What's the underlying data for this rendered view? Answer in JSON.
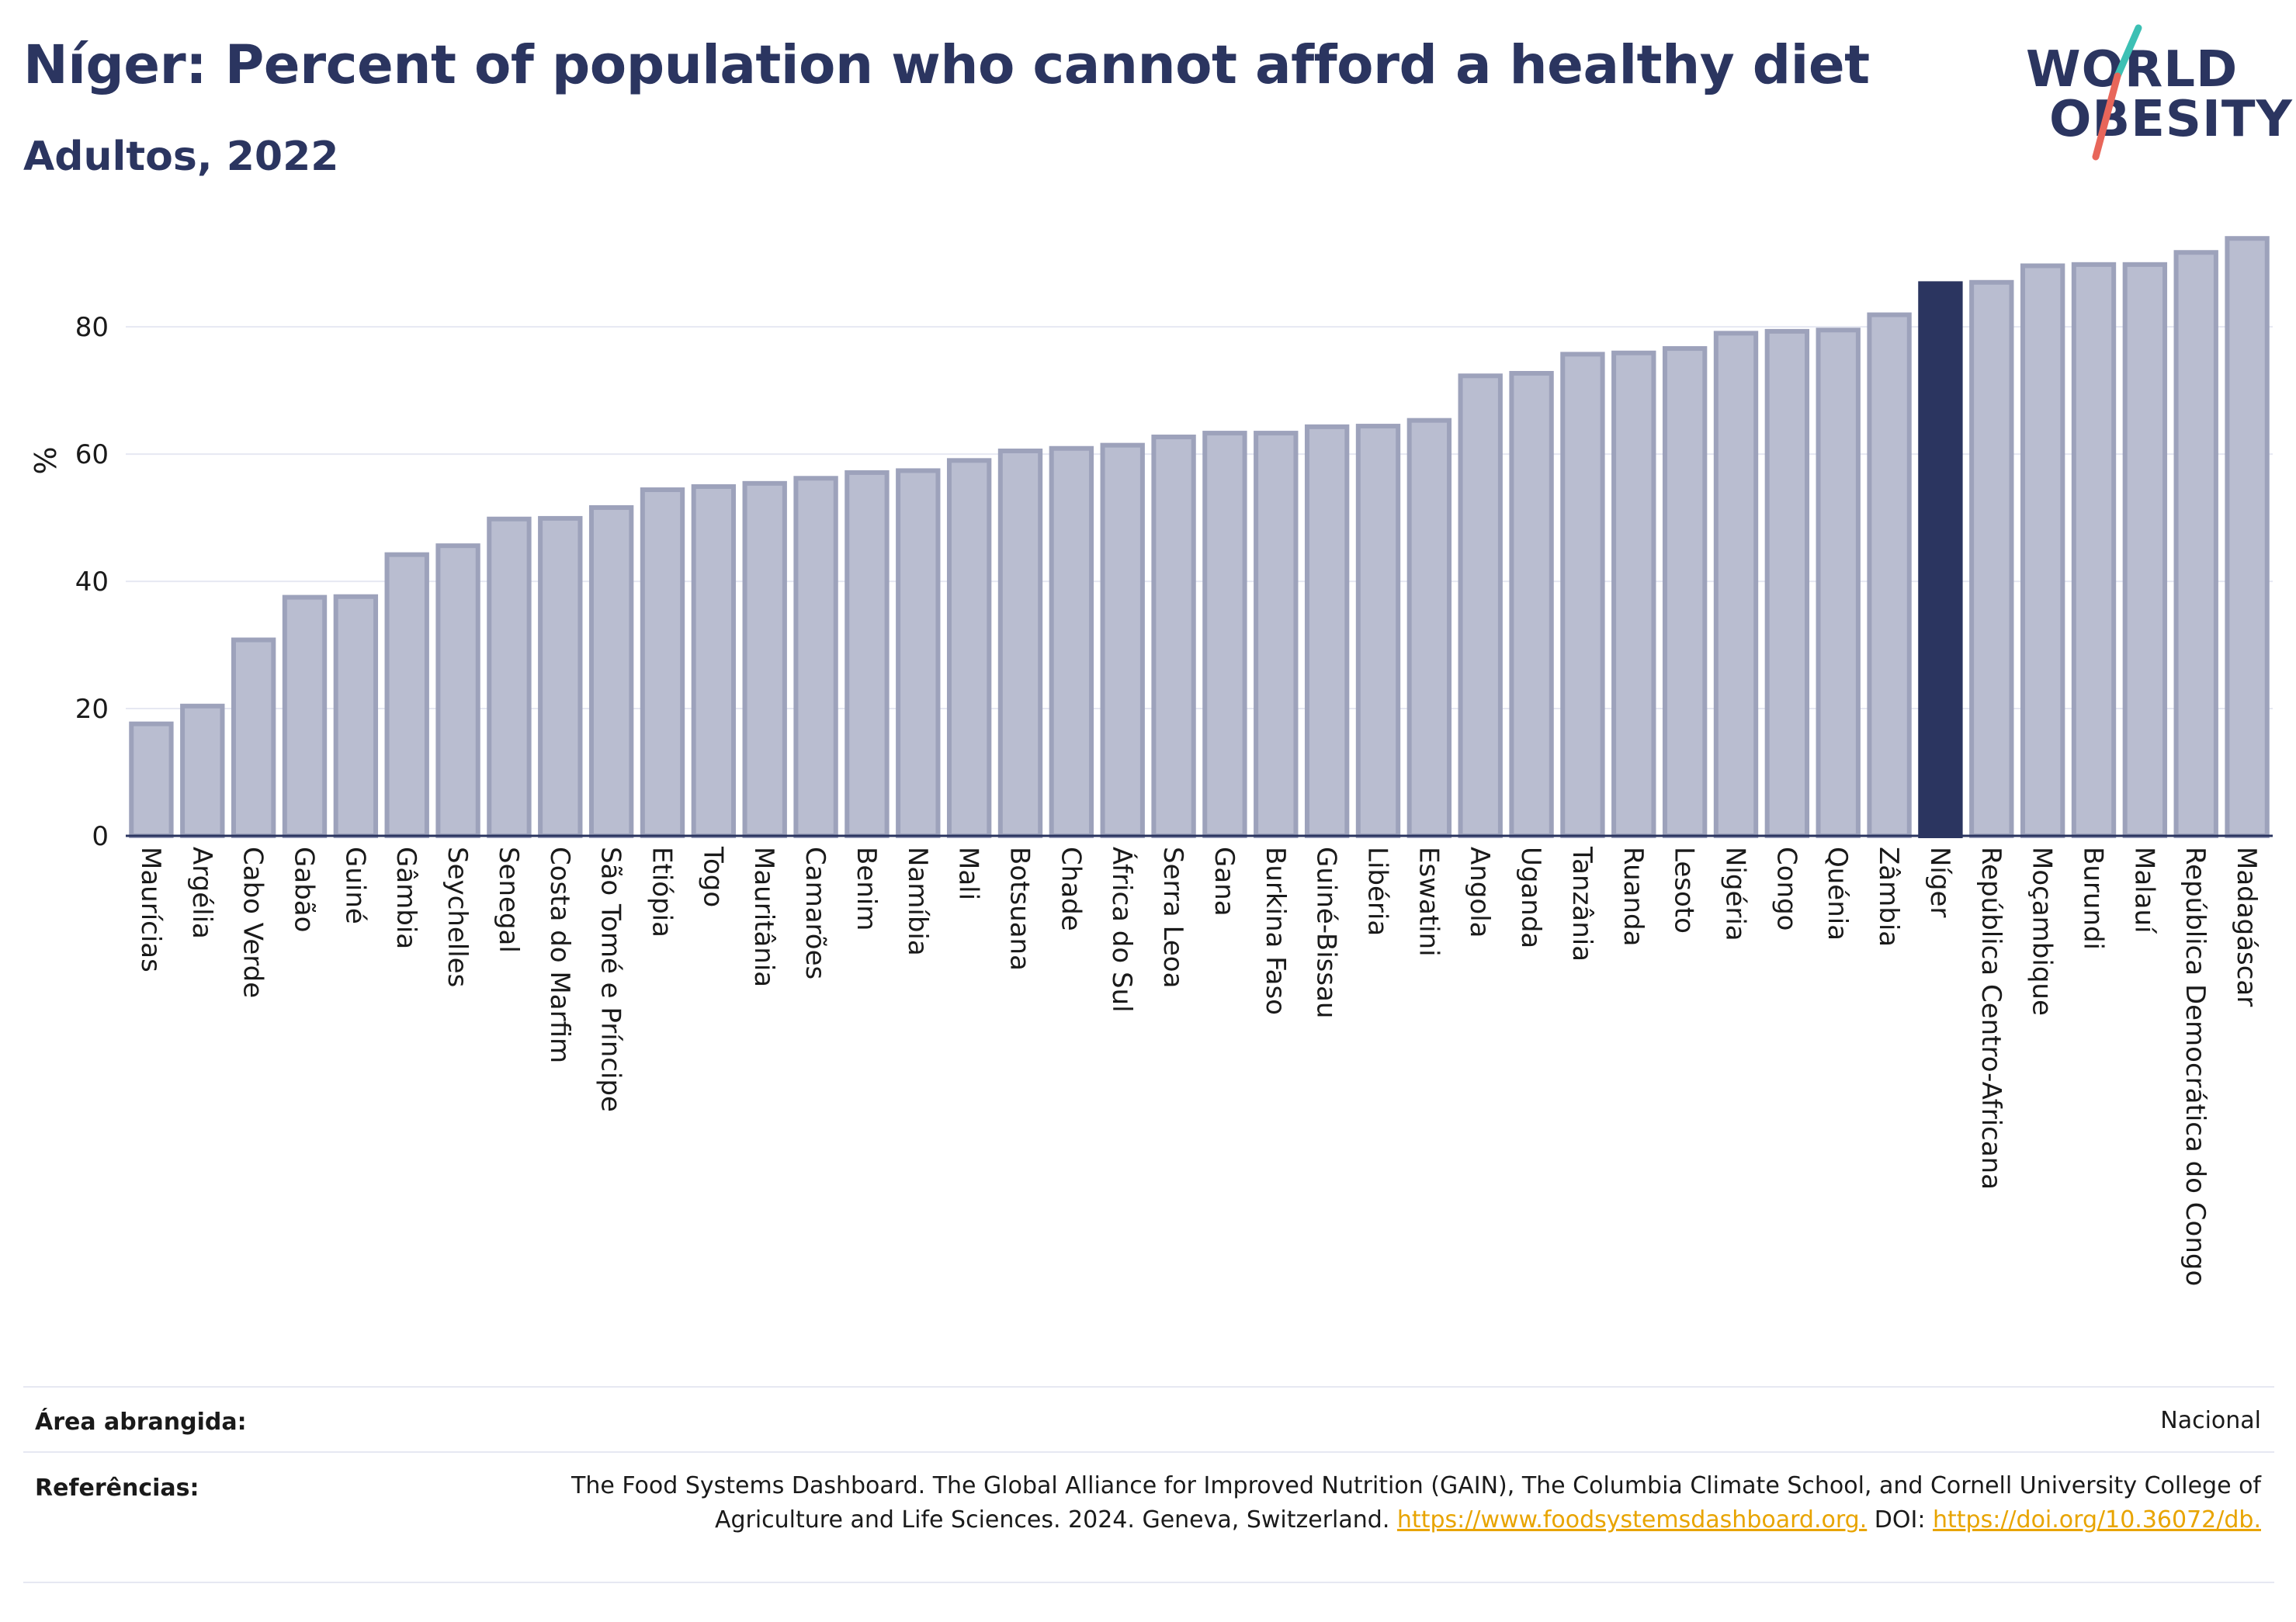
{
  "header": {
    "title": "Níger: Percent of population who cannot afford a healthy diet",
    "subtitle": "Adultos, 2022"
  },
  "logo": {
    "line1": "WORLD",
    "line2": "OBESITY",
    "colors": {
      "text": "#2b3560",
      "slash_top": "#3cc0b4",
      "slash_bottom": "#e8665a"
    }
  },
  "chart_data": {
    "type": "bar",
    "title": "",
    "xlabel": "",
    "ylabel": "%",
    "ylim": [
      0,
      96
    ],
    "yticks": [
      0,
      20,
      40,
      60,
      80
    ],
    "grid": true,
    "highlight": "Níger",
    "colors": {
      "bar": "#b9bdd0",
      "bar_border": "#9da2bb",
      "highlight": "#2b3560",
      "grid": "#e6e8f2",
      "axis": "#2b3560"
    },
    "categories": [
      "Maurícias",
      "Argélia",
      "Cabo Verde",
      "Gabão",
      "Guiné",
      "Gâmbia",
      "Seychelles",
      "Senegal",
      "Costa do Marfim",
      "São Tomé e Príncipe",
      "Etiópia",
      "Togo",
      "Mauritânia",
      "Camarões",
      "Benim",
      "Namíbia",
      "Mali",
      "Botsuana",
      "Chade",
      "África do Sul",
      "Serra Leoa",
      "Gana",
      "Burkina Faso",
      "Guiné-Bissau",
      "Libéria",
      "Eswatini",
      "Angola",
      "Uganda",
      "Tanzânia",
      "Ruanda",
      "Lesoto",
      "Nigéria",
      "Congo",
      "Quénia",
      "Zâmbia",
      "Níger",
      "República Centro-Africana",
      "Moçambique",
      "Burundi",
      "Malauí",
      "República Democrática do Congo",
      "Madagáscar"
    ],
    "values": [
      17.6,
      20.4,
      30.8,
      37.5,
      37.6,
      44.2,
      45.6,
      49.8,
      49.9,
      51.6,
      54.4,
      54.9,
      55.4,
      56.2,
      57.1,
      57.4,
      59.0,
      60.5,
      60.9,
      61.4,
      62.7,
      63.3,
      63.3,
      64.3,
      64.4,
      65.3,
      72.3,
      72.7,
      75.7,
      75.9,
      76.6,
      79.0,
      79.3,
      79.5,
      81.9,
      86.8,
      87.0,
      89.6,
      89.8,
      89.8,
      91.7,
      93.9
    ]
  },
  "footer": {
    "coverage_label": "Área abrangida:",
    "coverage_value": "Nacional",
    "references_label": "Referências:",
    "references_text": "The Food Systems Dashboard. The Global Alliance for Improved Nutrition (GAIN), The Columbia Climate School, and Cornell University College of Agriculture and Life Sciences. 2024. Geneva, Switzerland.",
    "references_link1": "https://www.foodsystemsdashboard.org.",
    "references_doi_label": "DOI:",
    "references_link2": "https://doi.org/10.36072/db."
  }
}
